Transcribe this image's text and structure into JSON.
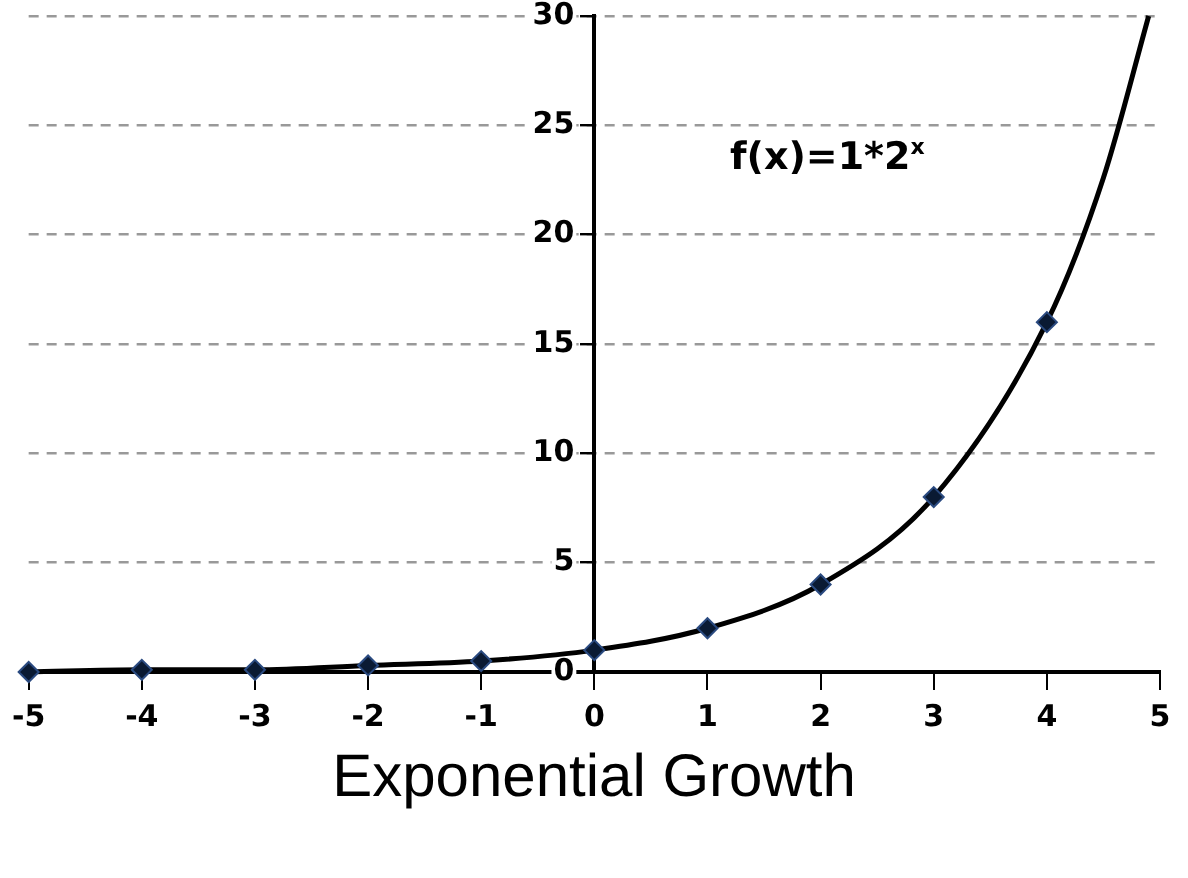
{
  "chart_data": {
    "type": "line",
    "title": "Exponential Growth",
    "annotations": [
      "f(x)=1*2$^{x}$"
    ],
    "series": [
      {
        "type": "line",
        "color": "#000000",
        "marker": "none",
        "x": [
          -5,
          -4,
          -3,
          -2,
          -1,
          0,
          1,
          2,
          3,
          4,
          4.5,
          4.9
        ],
        "values": [
          0,
          0.1,
          0.1,
          0.3,
          0.5,
          1,
          2,
          4,
          8,
          16,
          22.6,
          30
        ]
      },
      {
        "type": "scatter",
        "color": "#0a1a33",
        "marker": "diamond",
        "x": [
          -5,
          -4,
          -3,
          -2,
          -1,
          0,
          1,
          2,
          3,
          4
        ],
        "values": [
          0,
          0.1,
          0.1,
          0.3,
          0.5,
          1,
          2,
          4,
          8,
          16
        ]
      }
    ],
    "xlim": [
      -5,
      5
    ],
    "xticks": [
      -5,
      -4,
      -3,
      -2,
      -1,
      0,
      1,
      2,
      3,
      4,
      5
    ],
    "ylim": [
      0,
      30
    ],
    "yticks": [
      0,
      5,
      10,
      15,
      20,
      25,
      30
    ],
    "grid": "y",
    "legend": false
  }
}
